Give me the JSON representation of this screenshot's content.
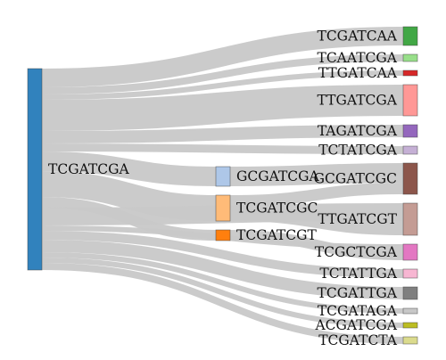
{
  "chart_data": {
    "type": "sankey",
    "title": "",
    "link_color": "#c8c8c8",
    "link_overlap_color": "#a6a6a6",
    "nodes": [
      {
        "id": "n0",
        "label": "TCGATCGA",
        "color": "#3182bd",
        "column": 0
      },
      {
        "id": "n1",
        "label": "GCGATCGA",
        "color": "#aec7e8",
        "column": 1
      },
      {
        "id": "n2",
        "label": "TCGATCGC",
        "color": "#ffbb78",
        "column": 1
      },
      {
        "id": "n3",
        "label": "TCGATCGT",
        "color": "#ff7f0e",
        "column": 1
      },
      {
        "id": "n4",
        "label": "TCGATCAA",
        "color": "#41a745",
        "column": 2
      },
      {
        "id": "n5",
        "label": "TCAATCGA",
        "color": "#98df8a",
        "column": 2
      },
      {
        "id": "n6",
        "label": "TTGATCAA",
        "color": "#d62728",
        "column": 2
      },
      {
        "id": "n7",
        "label": "TTGATCGA",
        "color": "#ff9896",
        "column": 2
      },
      {
        "id": "n8",
        "label": "TAGATCGA",
        "color": "#9467bd",
        "column": 2
      },
      {
        "id": "n9",
        "label": "TCTATCGA",
        "color": "#c5b0d5",
        "column": 2
      },
      {
        "id": "n10",
        "label": "GCGATCGC",
        "color": "#8c564b",
        "column": 2
      },
      {
        "id": "n11",
        "label": "TTGATCGT",
        "color": "#c49c94",
        "column": 2
      },
      {
        "id": "n12",
        "label": "TCGCTCGA",
        "color": "#e377c2",
        "column": 2
      },
      {
        "id": "n13",
        "label": "TCTATTGA",
        "color": "#f7b6d2",
        "column": 2
      },
      {
        "id": "n14",
        "label": "TCGATTGA",
        "color": "#7f7f7f",
        "column": 2
      },
      {
        "id": "n15",
        "label": "TCGATAGA",
        "color": "#c7c7c7",
        "column": 2
      },
      {
        "id": "n16",
        "label": "ACGATCGA",
        "color": "#bcbd22",
        "column": 2
      },
      {
        "id": "n17",
        "label": "TCGATCTA",
        "color": "#dbdb8d",
        "column": 2
      }
    ],
    "links": [
      {
        "source": "n0",
        "target": "n4",
        "value": 21
      },
      {
        "source": "n0",
        "target": "n5",
        "value": 8
      },
      {
        "source": "n0",
        "target": "n6",
        "value": 6
      },
      {
        "source": "n0",
        "target": "n7",
        "value": 35
      },
      {
        "source": "n0",
        "target": "n8",
        "value": 14
      },
      {
        "source": "n0",
        "target": "n9",
        "value": 9
      },
      {
        "source": "n0",
        "target": "n1",
        "value": 22
      },
      {
        "source": "n0",
        "target": "n2",
        "value": 29
      },
      {
        "source": "n0",
        "target": "n3",
        "value": 12
      },
      {
        "source": "n0",
        "target": "n11",
        "value": 20
      },
      {
        "source": "n0",
        "target": "n12",
        "value": 6
      },
      {
        "source": "n0",
        "target": "n13",
        "value": 10
      },
      {
        "source": "n0",
        "target": "n14",
        "value": 14
      },
      {
        "source": "n0",
        "target": "n15",
        "value": 6
      },
      {
        "source": "n0",
        "target": "n16",
        "value": 6
      },
      {
        "source": "n0",
        "target": "n17",
        "value": 8
      },
      {
        "source": "n1",
        "target": "n10",
        "value": 22
      },
      {
        "source": "n2",
        "target": "n10",
        "value": 13
      },
      {
        "source": "n2",
        "target": "n11",
        "value": 16
      },
      {
        "source": "n3",
        "target": "n12",
        "value": 12
      }
    ]
  }
}
